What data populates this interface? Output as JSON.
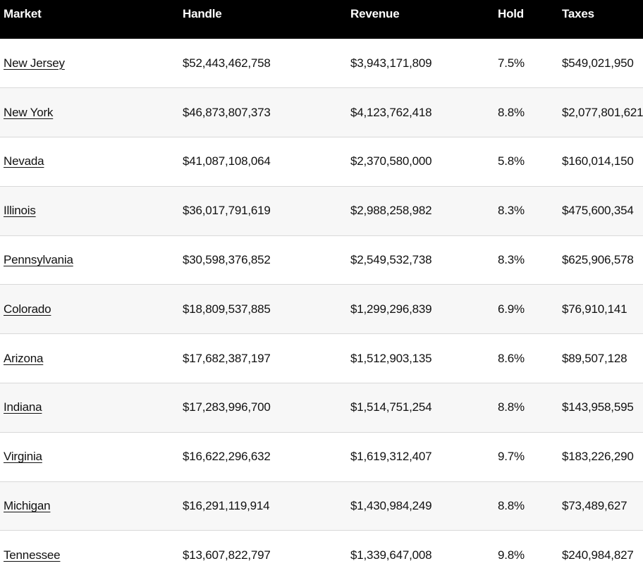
{
  "colors": {
    "header_bg": "#000000",
    "header_text": "#ffffff",
    "row_bg": "#ffffff",
    "row_alt_bg": "#f7f7f7",
    "border": "#d9d9d9",
    "text": "#111111"
  },
  "table": {
    "columns": [
      {
        "key": "market",
        "label": "Market"
      },
      {
        "key": "handle",
        "label": "Handle"
      },
      {
        "key": "revenue",
        "label": "Revenue"
      },
      {
        "key": "hold",
        "label": "Hold"
      },
      {
        "key": "taxes",
        "label": "Taxes"
      }
    ],
    "rows": [
      {
        "market": "New Jersey",
        "handle": "$52,443,462,758",
        "revenue": "$3,943,171,809",
        "hold": "7.5%",
        "taxes": "$549,021,950"
      },
      {
        "market": "New York",
        "handle": "$46,873,807,373",
        "revenue": "$4,123,762,418",
        "hold": "8.8%",
        "taxes": "$2,077,801,621"
      },
      {
        "market": "Nevada",
        "handle": "$41,087,108,064",
        "revenue": "$2,370,580,000",
        "hold": "5.8%",
        "taxes": "$160,014,150"
      },
      {
        "market": "Illinois",
        "handle": "$36,017,791,619",
        "revenue": "$2,988,258,982",
        "hold": "8.3%",
        "taxes": "$475,600,354"
      },
      {
        "market": "Pennsylvania",
        "handle": "$30,598,376,852",
        "revenue": "$2,549,532,738",
        "hold": "8.3%",
        "taxes": "$625,906,578"
      },
      {
        "market": "Colorado",
        "handle": "$18,809,537,885",
        "revenue": "$1,299,296,839",
        "hold": "6.9%",
        "taxes": "$76,910,141"
      },
      {
        "market": "Arizona",
        "handle": "$17,682,387,197",
        "revenue": "$1,512,903,135",
        "hold": "8.6%",
        "taxes": "$89,507,128"
      },
      {
        "market": "Indiana",
        "handle": "$17,283,996,700",
        "revenue": "$1,514,751,254",
        "hold": "8.8%",
        "taxes": "$143,958,595"
      },
      {
        "market": "Virginia",
        "handle": "$16,622,296,632",
        "revenue": "$1,619,312,407",
        "hold": "9.7%",
        "taxes": "$183,226,290"
      },
      {
        "market": "Michigan",
        "handle": "$16,291,119,914",
        "revenue": "$1,430,984,249",
        "hold": "8.8%",
        "taxes": "$73,489,627"
      },
      {
        "market": "Tennessee",
        "handle": "$13,607,822,797",
        "revenue": "$1,339,647,008",
        "hold": "9.8%",
        "taxes": "$240,984,827"
      }
    ]
  }
}
